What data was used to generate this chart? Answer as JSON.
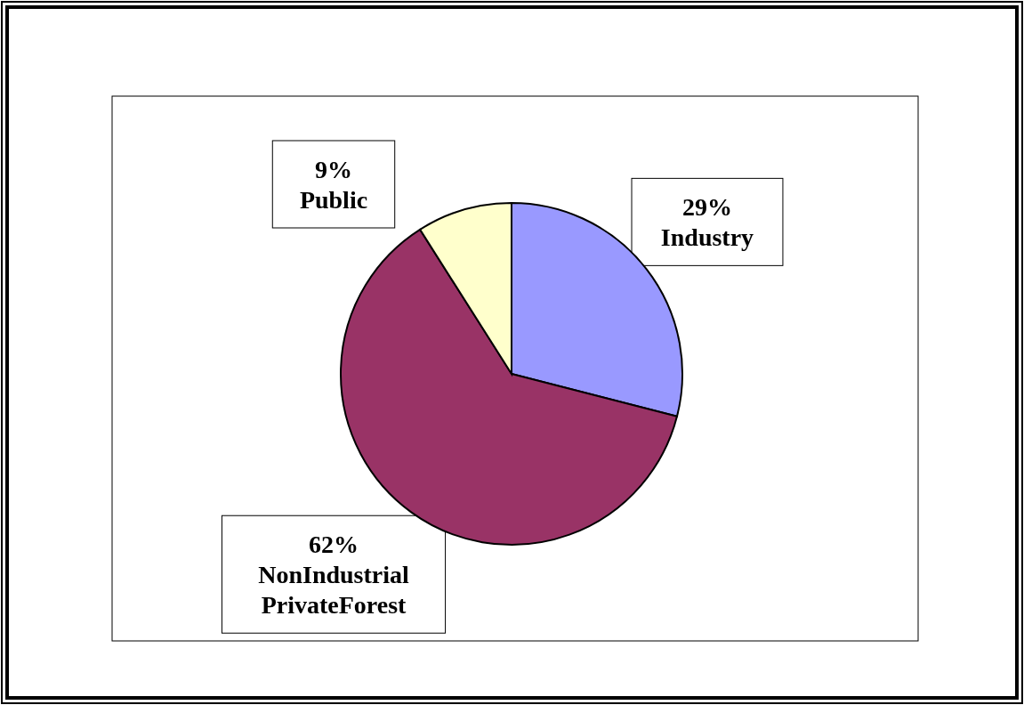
{
  "chart_data": {
    "type": "pie",
    "categories": [
      "Industry",
      "NonIndustrial PrivateForest",
      "Public"
    ],
    "values": [
      29,
      62,
      9
    ],
    "value_labels": [
      "29%",
      "62%",
      "9%"
    ],
    "colors": [
      "#9999ff",
      "#993366",
      "#ffffcc"
    ]
  }
}
